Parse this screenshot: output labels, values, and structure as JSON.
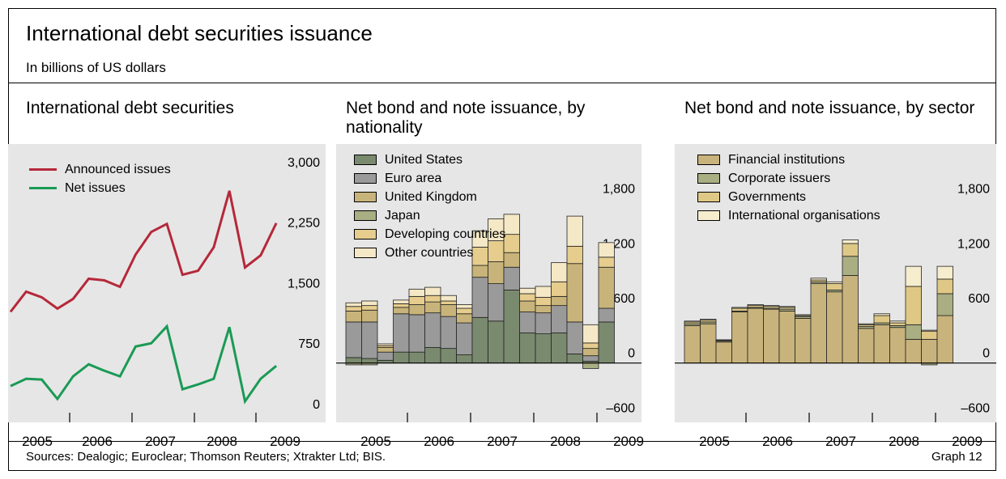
{
  "title": "International debt securities issuance",
  "subtitle": "In billions of US dollars",
  "footer": {
    "sources": "Sources: Dealogic; Euroclear; Thomson Reuters; Xtrakter Ltd; BIS.",
    "graph_label": "Graph 12"
  },
  "colors": {
    "announced": "#b5283a",
    "net": "#1a9a55",
    "plot_bg": "#e6e6e6",
    "united_states": "#7a8a6e",
    "euro_area": "#9a9a9a",
    "united_kingdom": "#c8b47a",
    "japan": "#a9ae83",
    "developing": "#e6cd8e",
    "other": "#f4e8c6",
    "financial": "#c9b37c",
    "corporate": "#a9ae83",
    "governments": "#dfc886",
    "intl_orgs": "#f6edcf"
  },
  "panels": [
    {
      "title": "International debt securities",
      "years": [
        "2005",
        "2006",
        "2007",
        "2008",
        "2009"
      ]
    },
    {
      "title": "Net bond and note issuance, by nationality",
      "years": [
        "2005",
        "2006",
        "2007",
        "2008",
        "2009"
      ]
    },
    {
      "title": "Net bond and note issuance, by sector",
      "years": [
        "2005",
        "2006",
        "2007",
        "2008",
        "2009"
      ]
    }
  ],
  "chart_data": [
    {
      "type": "line",
      "title": "International debt securities",
      "x": [
        "2004Q4",
        "2005Q1",
        "2005Q2",
        "2005Q3",
        "2005Q4",
        "2006Q1",
        "2006Q2",
        "2006Q3",
        "2006Q4",
        "2007Q1",
        "2007Q2",
        "2007Q3",
        "2007Q4",
        "2008Q1",
        "2008Q2",
        "2008Q3",
        "2008Q4",
        "2009Q1"
      ],
      "series": [
        {
          "name": "Announced issues",
          "color_key": "announced",
          "values": [
            1250,
            1500,
            1430,
            1290,
            1410,
            1660,
            1640,
            1560,
            1960,
            2240,
            2340,
            1710,
            1760,
            2050,
            2750,
            1800,
            1950,
            2350
          ]
        },
        {
          "name": "Net issues",
          "color_key": "net",
          "values": [
            330,
            420,
            410,
            170,
            450,
            600,
            520,
            450,
            820,
            860,
            1070,
            290,
            350,
            420,
            1060,
            140,
            420,
            580
          ]
        }
      ],
      "y_ticks": [
        "0",
        "750",
        "1,500",
        "2,250",
        "3,000"
      ],
      "ylim": [
        0,
        3250
      ],
      "x_ticks": [
        "2005",
        "2006",
        "2007",
        "2008",
        "2009"
      ],
      "legend": "top-left",
      "grid": false
    },
    {
      "type": "bar",
      "stacked": true,
      "title": "Net bond and note issuance, by nationality",
      "categories": [
        "2005Q1",
        "2005Q2",
        "2005Q3",
        "2005Q4",
        "2006Q1",
        "2006Q2",
        "2006Q3",
        "2006Q4",
        "2007Q1",
        "2007Q2",
        "2007Q3",
        "2007Q4",
        "2008Q1",
        "2008Q2",
        "2008Q3",
        "2008Q4",
        "2009Q1"
      ],
      "series": [
        {
          "name": "United States",
          "color_key": "united_states",
          "values": [
            60,
            50,
            30,
            120,
            120,
            170,
            160,
            90,
            500,
            460,
            800,
            330,
            320,
            330,
            100,
            20,
            450
          ]
        },
        {
          "name": "Euro area",
          "color_key": "euro_area",
          "values": [
            390,
            400,
            90,
            420,
            410,
            380,
            350,
            350,
            440,
            410,
            250,
            230,
            230,
            300,
            350,
            60,
            150
          ]
        },
        {
          "name": "United Kingdom",
          "color_key": "united_kingdom",
          "values": [
            120,
            130,
            50,
            70,
            110,
            120,
            130,
            100,
            130,
            240,
            160,
            120,
            80,
            100,
            640,
            80,
            450
          ]
        },
        {
          "name": "Japan",
          "color_key": "japan",
          "values": [
            -20,
            -20,
            0,
            0,
            0,
            0,
            0,
            0,
            0,
            0,
            0,
            0,
            0,
            0,
            0,
            -60,
            0
          ]
        },
        {
          "name": "Developing countries",
          "color_key": "developing",
          "values": [
            50,
            50,
            20,
            40,
            90,
            70,
            40,
            60,
            200,
            230,
            200,
            80,
            90,
            160,
            190,
            60,
            110
          ]
        },
        {
          "name": "Other countries",
          "color_key": "other",
          "values": [
            40,
            50,
            20,
            40,
            80,
            90,
            60,
            40,
            180,
            240,
            220,
            60,
            120,
            210,
            330,
            200,
            160
          ]
        }
      ],
      "y_ticks": [
        "–600",
        "0",
        "600",
        "1,200",
        "1,800"
      ],
      "ylim": [
        -650,
        2400
      ],
      "x_ticks": [
        "2005",
        "2006",
        "2007",
        "2008",
        "2009"
      ],
      "legend": "top-left",
      "grid": false
    },
    {
      "type": "bar",
      "stacked": true,
      "title": "Net bond and note issuance, by sector",
      "categories": [
        "2005Q1",
        "2005Q2",
        "2005Q3",
        "2005Q4",
        "2006Q1",
        "2006Q2",
        "2006Q3",
        "2006Q4",
        "2007Q1",
        "2007Q2",
        "2007Q3",
        "2007Q4",
        "2008Q1",
        "2008Q2",
        "2008Q3",
        "2008Q4",
        "2009Q1"
      ],
      "series": [
        {
          "name": "Financial institutions",
          "color_key": "financial",
          "values": [
            410,
            430,
            230,
            560,
            600,
            590,
            570,
            490,
            870,
            780,
            960,
            380,
            420,
            390,
            260,
            260,
            520
          ]
        },
        {
          "name": "Corporate issuers",
          "color_key": "corporate",
          "values": [
            20,
            20,
            10,
            10,
            10,
            10,
            20,
            20,
            20,
            20,
            210,
            20,
            20,
            20,
            160,
            -20,
            240
          ]
        },
        {
          "name": "Governments",
          "color_key": "governments",
          "values": [
            20,
            20,
            10,
            30,
            20,
            20,
            20,
            10,
            20,
            70,
            140,
            20,
            80,
            30,
            420,
            90,
            160
          ]
        },
        {
          "name": "International organisations",
          "color_key": "intl_orgs",
          "values": [
            10,
            10,
            5,
            10,
            10,
            10,
            10,
            10,
            20,
            20,
            40,
            10,
            20,
            20,
            220,
            10,
            140
          ]
        }
      ],
      "y_ticks": [
        "–600",
        "0",
        "600",
        "1,200",
        "1,800"
      ],
      "ylim": [
        -650,
        2400
      ],
      "x_ticks": [
        "2005",
        "2006",
        "2007",
        "2008",
        "2009"
      ],
      "legend": "top-left",
      "grid": false
    }
  ]
}
